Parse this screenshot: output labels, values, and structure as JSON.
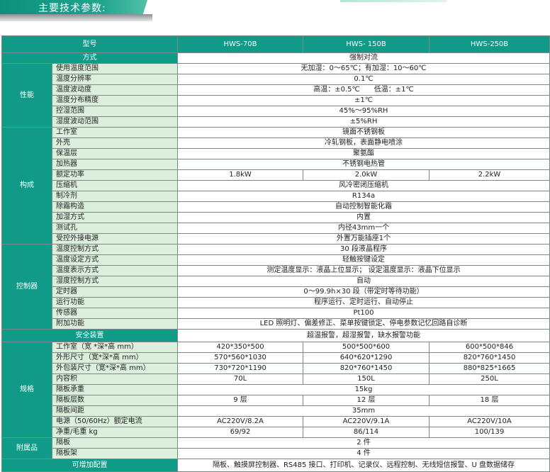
{
  "title": "主要技术参数:",
  "colors": {
    "teal": "#0f9b87",
    "label_bg": "#dcefdc"
  },
  "header": {
    "label": "型号",
    "models": [
      "HWS-70B",
      "HWS- 150B",
      "HWS-250B"
    ]
  },
  "method": {
    "label": "方式",
    "value": "强制对流"
  },
  "groups": [
    {
      "name": "性能",
      "rows": [
        {
          "label": "使用温度范围",
          "values": [
            "无加湿：0～65℃；有加湿：10～60℃"
          ]
        },
        {
          "label": "温度分辨率",
          "values": [
            "0.1℃"
          ]
        },
        {
          "label": "温度波动度",
          "values": [
            "高温：±0.5℃　　低温：±1℃"
          ]
        },
        {
          "label": "温度分布精度",
          "values": [
            "±1℃"
          ]
        },
        {
          "label": "控湿范围",
          "values": [
            "45%～95%RH"
          ]
        },
        {
          "label": "湿度波动范围",
          "values": [
            "±5%RH"
          ]
        }
      ]
    },
    {
      "name": "构成",
      "rows": [
        {
          "label": "工作室",
          "values": [
            "镜面不锈钢板"
          ]
        },
        {
          "label": "外壳",
          "values": [
            "冷轧钢板，表面静电喷涂"
          ]
        },
        {
          "label": "保温层",
          "values": [
            "聚氨酯"
          ]
        },
        {
          "label": "加热器",
          "values": [
            "不锈钢电热管"
          ]
        },
        {
          "label": "额定功率",
          "values": [
            "1.8kW",
            "2.0kW",
            "2.2kW"
          ]
        },
        {
          "label": "压缩机",
          "values": [
            "风冷密闭压缩机"
          ]
        },
        {
          "label": "制冷剂",
          "values": [
            "R134a"
          ]
        },
        {
          "label": "除霜构造",
          "values": [
            "自动控制智能化霜"
          ]
        },
        {
          "label": "加湿方式",
          "values": [
            "内置"
          ]
        },
        {
          "label": "测试孔",
          "values": [
            "内径43mm一个"
          ]
        },
        {
          "label": "受控外接电源",
          "values": [
            "外置万能插座1个"
          ]
        }
      ]
    },
    {
      "name": "控制器",
      "rows": [
        {
          "label": "温度控制方式",
          "values": [
            "30 段液晶程序"
          ]
        },
        {
          "label": "温度设定方式",
          "values": [
            "轻触按键设定"
          ]
        },
        {
          "label": "温度表示方式",
          "values": [
            "测定温度显示：液晶上位显示；  设定温度显示：液晶下位显示"
          ]
        },
        {
          "label": "湿度控制方式",
          "values": [
            "自动"
          ]
        },
        {
          "label": "定时器",
          "values": [
            "0～99.9h×30 段（带定时等待功能）"
          ]
        },
        {
          "label": "运行功能",
          "values": [
            "程序运行、定时运行、自动停止"
          ]
        },
        {
          "label": "传感器",
          "values": [
            "Pt100"
          ]
        },
        {
          "label": "附加功能",
          "values": [
            "LED 照明灯、偏差修正、菜单按键锁定、停电参数记忆回路自诊断"
          ]
        }
      ]
    }
  ],
  "safety": {
    "label": "安全装置",
    "value": "超温报警，超湿报警，缺水报警功能"
  },
  "groups2": [
    {
      "name": "规格",
      "rows": [
        {
          "label": "工作室（宽 *深*高 mm）",
          "values": [
            "420*350*500",
            "500*500*600",
            "600*500*846"
          ]
        },
        {
          "label": "外形尺寸（宽*深*高 mm）",
          "values": [
            "570*560*1030",
            "640*620*1290",
            "820*760*1450"
          ]
        },
        {
          "label": "外包装尺寸（宽*深*高 mm）",
          "values": [
            "730*720*1190",
            "820*760*1450",
            "880*825*1665"
          ]
        },
        {
          "label": "内容积",
          "values": [
            "70L",
            "150L",
            "250L"
          ]
        },
        {
          "label": "隔板承重",
          "values": [
            "15kg"
          ]
        },
        {
          "label": "隔板层数",
          "values": [
            "9 层",
            "12 层",
            "18 层"
          ]
        },
        {
          "label": "隔板间距",
          "values": [
            "35mm"
          ]
        },
        {
          "label": "电源（50/60Hz）额定电流",
          "values": [
            "AC220V/8.2A",
            "AC220V/9.1A",
            "AC220V/10A"
          ]
        },
        {
          "label": "净重/毛重 kg",
          "values": [
            "69/92",
            "86/114",
            "100/139"
          ]
        }
      ]
    },
    {
      "name": "附属品",
      "rows": [
        {
          "label": "隔板",
          "values": [
            "2 件"
          ]
        },
        {
          "label": "隔板架",
          "values": [
            "4 件"
          ]
        }
      ]
    }
  ],
  "extra": {
    "label": "可增加配置",
    "value": "隔板、触摸屏控制器、RS485 接口、打印机、记录仪、远程控制、无线短信报警、U 盘数据储存"
  }
}
